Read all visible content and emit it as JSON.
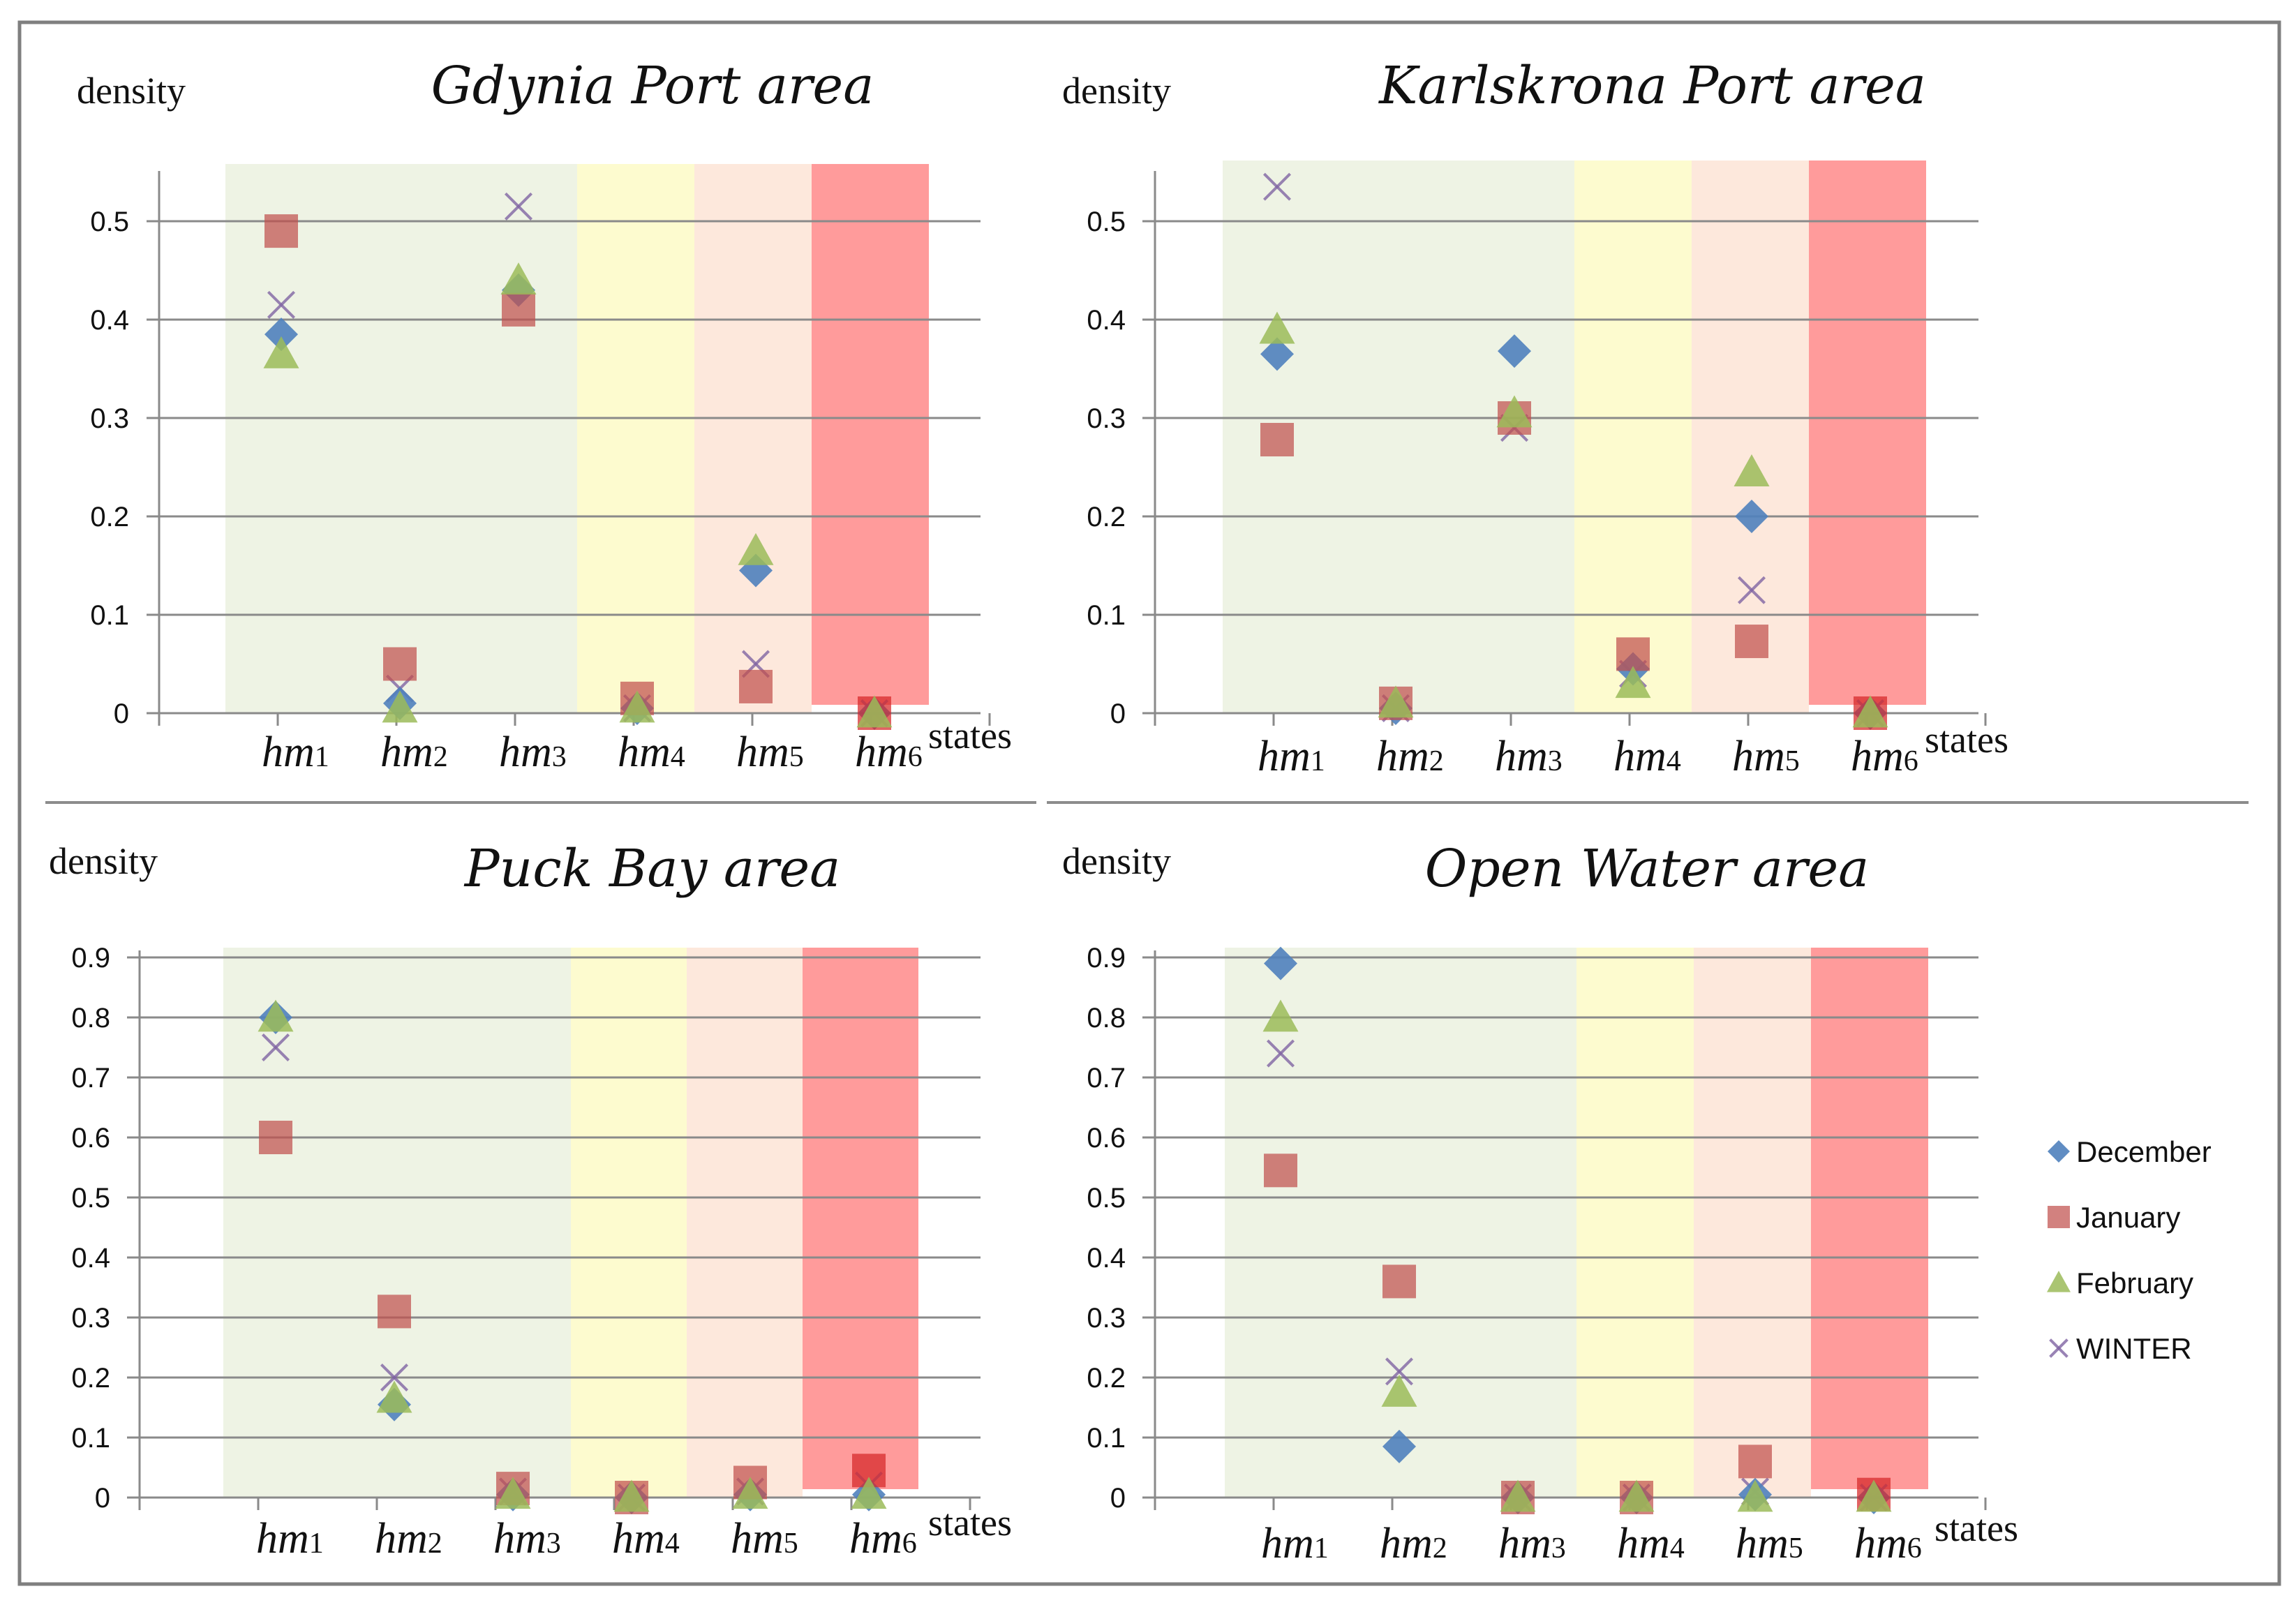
{
  "legend": {
    "items": [
      {
        "name": "December",
        "color": "#4f81bd",
        "marker": "diamond"
      },
      {
        "name": "January",
        "color": "#c0504d",
        "marker": "square"
      },
      {
        "name": "February",
        "color": "#9bbb59",
        "marker": "triangle"
      },
      {
        "name": "WINTER",
        "color": "#8064a2",
        "marker": "x"
      }
    ]
  },
  "state_colors": [
    "#eef3e4",
    "#eef3e4",
    "#eef3e4",
    "#fdfbcf",
    "#fde8dc",
    "#ff9b9b"
  ],
  "chart_data": [
    {
      "type": "scatter",
      "title": "Gdynia Port area",
      "ylabel": "density",
      "xlabel": "states",
      "categories": [
        {
          "main": "hm",
          "sub": "1"
        },
        {
          "main": "hm",
          "sub": "2"
        },
        {
          "main": "hm",
          "sub": "3"
        },
        {
          "main": "hm",
          "sub": "4"
        },
        {
          "main": "hm",
          "sub": "5"
        },
        {
          "main": "hm",
          "sub": "6"
        }
      ],
      "ylim": [
        0,
        0.55
      ],
      "yticks": [
        "0",
        "0.1",
        "0.2",
        "0.3",
        "0.4",
        "0.5"
      ],
      "grid": true,
      "series": [
        {
          "name": "December",
          "values": [
            0.385,
            0.01,
            0.43,
            0.005,
            0.145,
            0
          ]
        },
        {
          "name": "January",
          "values": [
            0.49,
            0.05,
            0.41,
            0.015,
            0.027,
            0
          ]
        },
        {
          "name": "February",
          "values": [
            0.365,
            0.005,
            0.44,
            0.005,
            0.165,
            0
          ]
        },
        {
          "name": "WINTER",
          "values": [
            0.415,
            0.025,
            0.515,
            0.005,
            0.05,
            0
          ]
        }
      ]
    },
    {
      "type": "scatter",
      "title": "Karlskrona Port area",
      "ylabel": "density",
      "xlabel": "states",
      "categories": [
        {
          "main": "hm",
          "sub": "1"
        },
        {
          "main": "hm",
          "sub": "2"
        },
        {
          "main": "hm",
          "sub": "3"
        },
        {
          "main": "hm",
          "sub": "4"
        },
        {
          "main": "hm",
          "sub": "5"
        },
        {
          "main": "hm",
          "sub": "6"
        }
      ],
      "ylim": [
        0,
        0.55
      ],
      "yticks": [
        "0",
        "0.1",
        "0.2",
        "0.3",
        "0.4",
        "0.5"
      ],
      "grid": true,
      "series": [
        {
          "name": "December",
          "values": [
            0.365,
            0.005,
            0.368,
            0.045,
            0.2,
            0
          ]
        },
        {
          "name": "January",
          "values": [
            0.278,
            0.01,
            0.3,
            0.06,
            0.073,
            0
          ]
        },
        {
          "name": "February",
          "values": [
            0.39,
            0.01,
            0.305,
            0.03,
            0.245,
            0
          ]
        },
        {
          "name": "WINTER",
          "values": [
            0.535,
            0.005,
            0.29,
            0.04,
            0.125,
            0
          ]
        }
      ]
    },
    {
      "type": "scatter",
      "title": "Puck Bay area",
      "ylabel": "density",
      "xlabel": "states",
      "categories": [
        {
          "main": "hm",
          "sub": "1"
        },
        {
          "main": "hm",
          "sub": "2"
        },
        {
          "main": "hm",
          "sub": "3"
        },
        {
          "main": "hm",
          "sub": "4"
        },
        {
          "main": "hm",
          "sub": "5"
        },
        {
          "main": "hm",
          "sub": "6"
        }
      ],
      "ylim": [
        0,
        0.9
      ],
      "yticks": [
        "0",
        "0.1",
        "0.2",
        "0.3",
        "0.4",
        "0.5",
        "0.6",
        "0.7",
        "0.8",
        "0.9"
      ],
      "grid": true,
      "series": [
        {
          "name": "December",
          "values": [
            0.8,
            0.155,
            0.005,
            0,
            0.005,
            0.005
          ]
        },
        {
          "name": "January",
          "values": [
            0.6,
            0.31,
            0.015,
            0,
            0.025,
            0.045
          ]
        },
        {
          "name": "February",
          "values": [
            0.8,
            0.165,
            0.005,
            0,
            0.005,
            0.005
          ]
        },
        {
          "name": "WINTER",
          "values": [
            0.75,
            0.2,
            0.01,
            0,
            0.01,
            0.02
          ]
        }
      ]
    },
    {
      "type": "scatter",
      "title": "Open Water area",
      "ylabel": "density",
      "xlabel": "states",
      "categories": [
        {
          "main": "hm",
          "sub": "1"
        },
        {
          "main": "hm",
          "sub": "2"
        },
        {
          "main": "hm",
          "sub": "3"
        },
        {
          "main": "hm",
          "sub": "4"
        },
        {
          "main": "hm",
          "sub": "5"
        },
        {
          "main": "hm",
          "sub": "6"
        }
      ],
      "ylim": [
        0,
        0.9
      ],
      "yticks": [
        "0",
        "0.1",
        "0.2",
        "0.3",
        "0.4",
        "0.5",
        "0.6",
        "0.7",
        "0.8",
        "0.9"
      ],
      "grid": true,
      "series": [
        {
          "name": "December",
          "values": [
            0.89,
            0.085,
            0,
            0,
            0.005,
            0
          ]
        },
        {
          "name": "January",
          "values": [
            0.545,
            0.36,
            0,
            0,
            0.06,
            0.005
          ]
        },
        {
          "name": "February",
          "values": [
            0.8,
            0.175,
            0,
            0,
            0,
            0
          ]
        },
        {
          "name": "WINTER",
          "values": [
            0.74,
            0.21,
            0,
            0,
            0.01,
            0
          ]
        }
      ]
    }
  ]
}
